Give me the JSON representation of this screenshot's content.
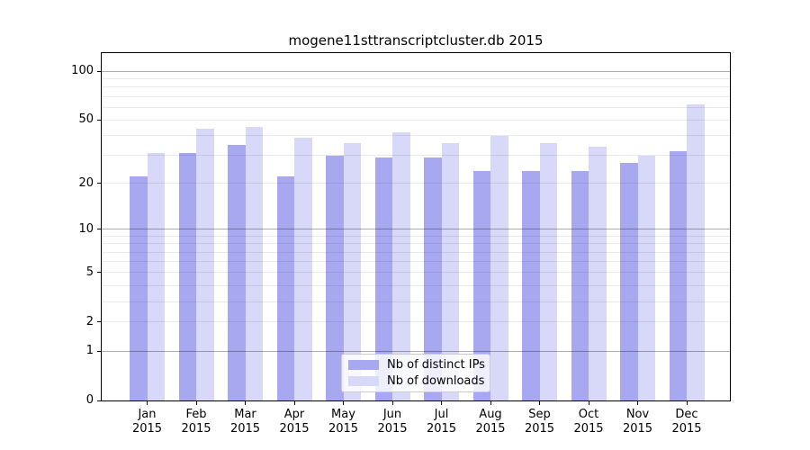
{
  "chart_data": {
    "type": "bar",
    "title": "mogene11sttranscriptcluster.db 2015",
    "xlabel": "",
    "ylabel": "",
    "y_scale": "log1p",
    "ylim": [
      0,
      130
    ],
    "grid": true,
    "legend_position": "bottom-center",
    "year": "2015",
    "categories": [
      "Jan",
      "Feb",
      "Mar",
      "Apr",
      "May",
      "Jun",
      "Jul",
      "Aug",
      "Sep",
      "Oct",
      "Nov",
      "Dec"
    ],
    "y_ticks": [
      100,
      50,
      20,
      10,
      5,
      2,
      1,
      0
    ],
    "series": [
      {
        "name": "Nb of distinct IPs",
        "color": "#a8a8f0",
        "values": [
          22,
          31,
          35,
          22,
          30,
          29,
          29,
          24,
          24,
          24,
          27,
          32
        ]
      },
      {
        "name": "Nb of downloads",
        "color": "#d8d8f8",
        "values": [
          31,
          44,
          45,
          39,
          36,
          42,
          36,
          40,
          36,
          34,
          30,
          62
        ]
      }
    ]
  }
}
